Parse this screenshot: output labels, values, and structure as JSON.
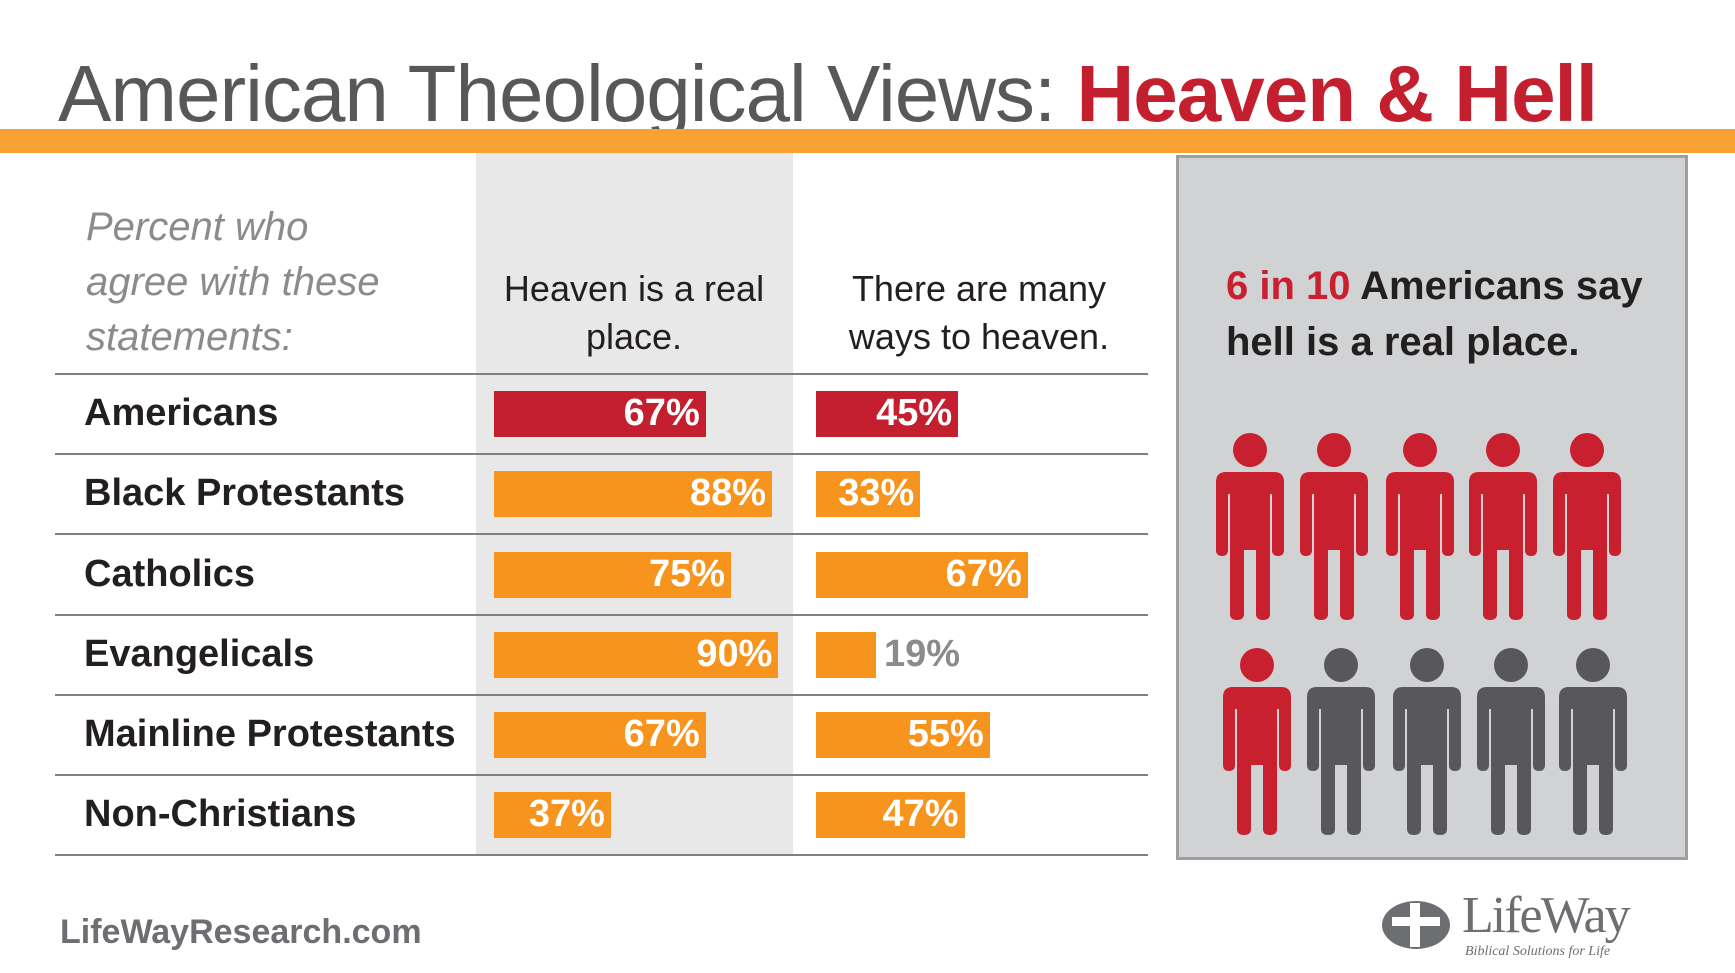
{
  "title": "American Theological Views:",
  "title_highlight": "Heaven & Hell",
  "subtitle": "Percent who agree with these statements:",
  "chart_data": {
    "type": "bar",
    "categories": [
      "Americans",
      "Black Protestants",
      "Catholics",
      "Evangelicals",
      "Mainline Protestants",
      "Non-Christians"
    ],
    "series": [
      {
        "name": "Heaven is a real place.",
        "values": [
          67,
          88,
          75,
          90,
          67,
          37
        ],
        "value_labels": [
          "67%",
          "88%",
          "75%",
          "90%",
          "67%",
          "37%"
        ],
        "colors": [
          "#c41f2f",
          "#f7941d",
          "#f7941d",
          "#f7941d",
          "#f7941d",
          "#f7941d"
        ]
      },
      {
        "name": "There are many ways to heaven.",
        "values": [
          45,
          33,
          67,
          19,
          55,
          47
        ],
        "value_labels": [
          "45%",
          "33%",
          "67%",
          "19%",
          "55%",
          "47%"
        ],
        "colors": [
          "#c41f2f",
          "#f7941d",
          "#f7941d",
          "#f7941d",
          "#f7941d",
          "#f7941d"
        ]
      }
    ]
  },
  "callout": {
    "highlight": "6 in 10",
    "text": "Americans say hell is a real place."
  },
  "icons": {
    "highlighted": 6,
    "total": 10,
    "highlight_color": "#c8202f",
    "other_color": "#58585a"
  },
  "footer": {
    "website": "LifeWayResearch.com",
    "logo": "LifeWay",
    "tagline": "Biblical Solutions for Life"
  }
}
